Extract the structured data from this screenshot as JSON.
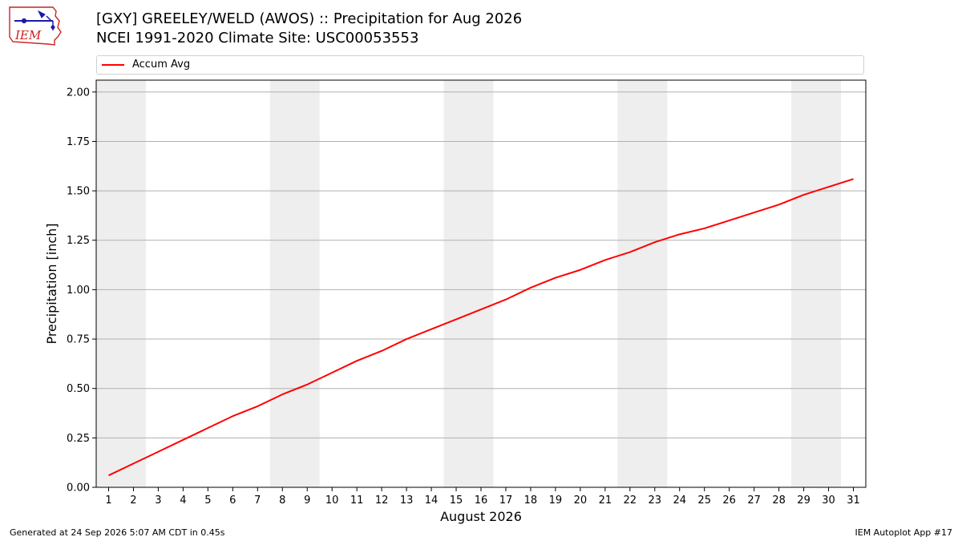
{
  "header": {
    "title_line1": "[GXY] GREELEY/WELD (AWOS) :: Precipitation for Aug 2026",
    "title_line2": "NCEI 1991-2020 Climate Site: USC00053553",
    "logo_text": "IEM"
  },
  "footer": {
    "generated": "Generated at 24 Sep 2026 5:07 AM CDT in 0.45s",
    "app": "IEM Autoplot App #17"
  },
  "colors": {
    "line": "#ff0000",
    "weekend_band": "#eeeeee",
    "grid": "#b0b0b0",
    "logo_red": "#cc2222",
    "logo_blue": "#1a1aa8"
  },
  "chart_data": {
    "type": "line",
    "xlabel": "August 2026",
    "ylabel": "Precipitation [inch]",
    "xlim": [
      0.5,
      31.5
    ],
    "ylim": [
      0,
      2.06
    ],
    "grid": "y-major",
    "legend_position": "top",
    "x": [
      1,
      2,
      3,
      4,
      5,
      6,
      7,
      8,
      9,
      10,
      11,
      12,
      13,
      14,
      15,
      16,
      17,
      18,
      19,
      20,
      21,
      22,
      23,
      24,
      25,
      26,
      27,
      28,
      29,
      30,
      31
    ],
    "x_tick_labels": [
      "1",
      "2",
      "3",
      "4",
      "5",
      "6",
      "7",
      "8",
      "9",
      "10",
      "11",
      "12",
      "13",
      "14",
      "15",
      "16",
      "17",
      "18",
      "19",
      "20",
      "21",
      "22",
      "23",
      "24",
      "25",
      "26",
      "27",
      "28",
      "29",
      "30",
      "31"
    ],
    "y_ticks": [
      0,
      0.25,
      0.5,
      0.75,
      1.0,
      1.25,
      1.5,
      1.75,
      2.0
    ],
    "y_tick_labels": [
      "0.00",
      "0.25",
      "0.50",
      "0.75",
      "1.00",
      "1.25",
      "1.50",
      "1.75",
      "2.00"
    ],
    "weekend_spans": [
      [
        1,
        2
      ],
      [
        8,
        9
      ],
      [
        15,
        16
      ],
      [
        22,
        23
      ],
      [
        29,
        30
      ]
    ],
    "series": [
      {
        "name": "Accum Avg",
        "values": [
          0.06,
          0.12,
          0.18,
          0.24,
          0.3,
          0.36,
          0.41,
          0.47,
          0.52,
          0.58,
          0.64,
          0.69,
          0.75,
          0.8,
          0.85,
          0.9,
          0.95,
          1.01,
          1.06,
          1.1,
          1.15,
          1.19,
          1.24,
          1.28,
          1.31,
          1.35,
          1.39,
          1.43,
          1.48,
          1.52,
          1.56
        ]
      }
    ]
  }
}
